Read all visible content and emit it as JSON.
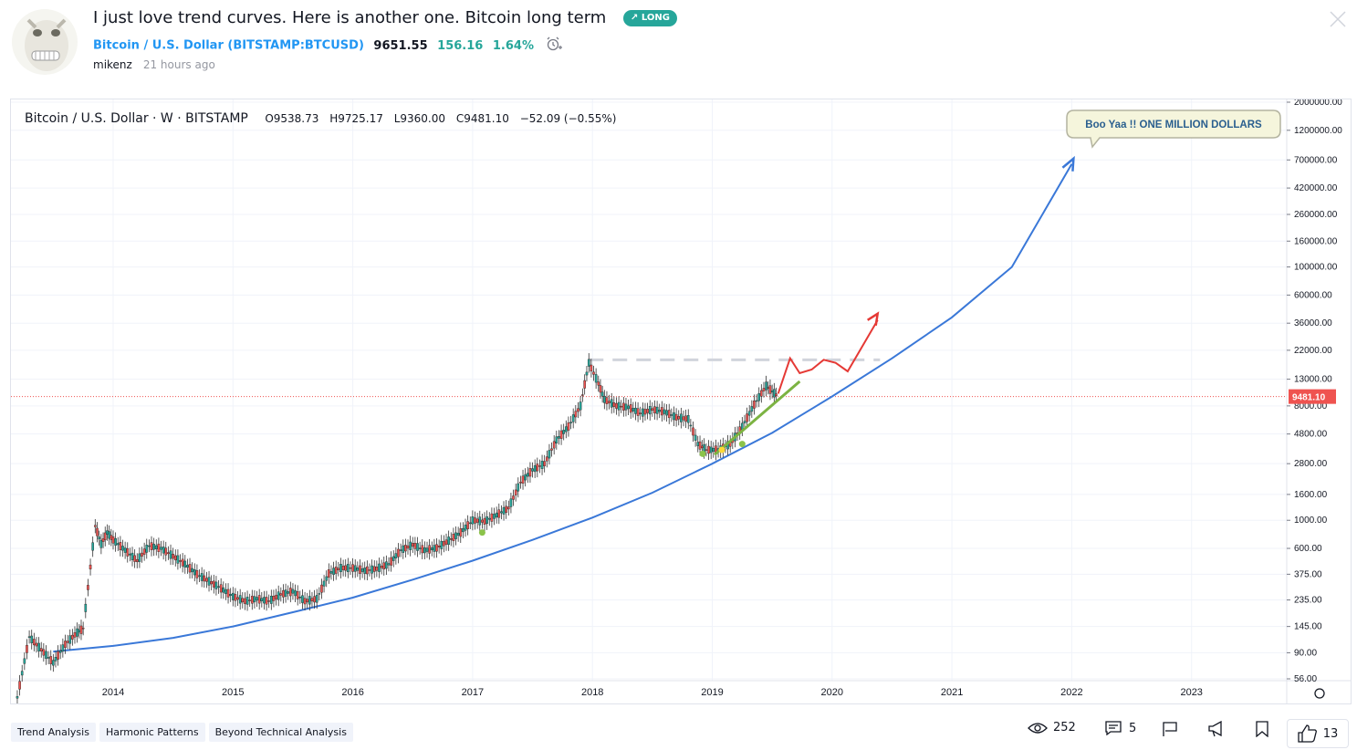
{
  "post": {
    "title": "I just love trend curves. Here is another one. Bitcoin long term",
    "badge": "↗ LONG",
    "author": "mikenz",
    "time_ago": "21 hours ago",
    "colors": {
      "accent": "#2196f3",
      "long": "#26a69a"
    }
  },
  "symbol": {
    "name": "Bitcoin / U.S. Dollar",
    "ticker_open": " (",
    "ticker": "BITSTAMP:BTCUSD",
    "ticker_close": ")",
    "price": "9651.55",
    "change": "156.16",
    "change_pct": "1.64%"
  },
  "legend": {
    "title": "Bitcoin / U.S. Dollar · W · BITSTAMP",
    "o": "O9538.73",
    "h": "H9725.17",
    "l": "L9360.00",
    "c": "C9481.10",
    "chg": "−52.09 (−0.55%)"
  },
  "chart_data": {
    "type": "line",
    "y_scale": "log",
    "x_ticks": [
      "2014",
      "2015",
      "2016",
      "2017",
      "2018",
      "2019",
      "2020",
      "2021",
      "2022",
      "2023"
    ],
    "y_ticks": [
      "2000000.00",
      "1200000.00",
      "700000.00",
      "420000.00",
      "260000.00",
      "160000.00",
      "100000.00",
      "60000.00",
      "36000.00",
      "22000.00",
      "13000.00",
      "8000.00",
      "4800.00",
      "2800.00",
      "1600.00",
      "1000.00",
      "600.00",
      "375.00",
      "235.00",
      "145.00",
      "90.00",
      "56.00"
    ],
    "y_tick_values": [
      2000000,
      1200000,
      700000,
      420000,
      260000,
      160000,
      100000,
      60000,
      36000,
      22000,
      13000,
      8000,
      4800,
      2800,
      1600,
      1000,
      600,
      375,
      235,
      145,
      90,
      56
    ],
    "last_price_label": "9481.10",
    "last_price": 9481.1,
    "price_series": {
      "x": [
        2013.2,
        2013.3,
        2013.4,
        2013.5,
        2013.6,
        2013.7,
        2013.75,
        2013.85,
        2013.9,
        2013.95,
        2014.0,
        2014.1,
        2014.2,
        2014.3,
        2014.4,
        2014.5,
        2014.6,
        2014.7,
        2014.8,
        2014.9,
        2015.0,
        2015.1,
        2015.2,
        2015.3,
        2015.4,
        2015.5,
        2015.6,
        2015.7,
        2015.8,
        2015.9,
        2016.0,
        2016.1,
        2016.2,
        2016.3,
        2016.4,
        2016.5,
        2016.6,
        2016.7,
        2016.8,
        2016.9,
        2017.0,
        2017.1,
        2017.2,
        2017.3,
        2017.4,
        2017.5,
        2017.6,
        2017.7,
        2017.8,
        2017.9,
        2017.97,
        2018.05,
        2018.1,
        2018.2,
        2018.3,
        2018.4,
        2018.5,
        2018.6,
        2018.7,
        2018.8,
        2018.88,
        2018.95,
        2019.05,
        2019.15,
        2019.25,
        2019.35,
        2019.45,
        2019.5,
        2019.55
      ],
      "y": [
        40,
        120,
        95,
        75,
        105,
        130,
        140,
        900,
        650,
        800,
        700,
        580,
        480,
        630,
        600,
        520,
        450,
        375,
        330,
        290,
        250,
        230,
        240,
        230,
        260,
        275,
        230,
        240,
        380,
        420,
        420,
        400,
        415,
        450,
        580,
        640,
        580,
        605,
        690,
        800,
        1000,
        980,
        1100,
        1250,
        2000,
        2500,
        2800,
        4300,
        5500,
        8000,
        17500,
        12000,
        9000,
        8000,
        7800,
        7000,
        7500,
        7200,
        6500,
        6300,
        4000,
        3600,
        3600,
        4000,
        5500,
        8200,
        11500,
        10400,
        9481
      ]
    },
    "trend_curve": {
      "x": [
        2013.5,
        2014.0,
        2014.5,
        2015.0,
        2015.5,
        2016.0,
        2016.5,
        2017.0,
        2017.5,
        2018.0,
        2018.5,
        2019.0,
        2019.5,
        2020.0,
        2020.5,
        2021.0,
        2021.5,
        2022.0
      ],
      "y": [
        92,
        102,
        118,
        145,
        188,
        245,
        340,
        480,
        700,
        1050,
        1650,
        2800,
        4900,
        9500,
        19000,
        40000,
        100000,
        650000
      ]
    },
    "green_trendline": {
      "x": [
        2019.02,
        2019.73
      ],
      "y": [
        3300,
        12500
      ]
    },
    "resistance": {
      "x": [
        2017.97,
        2020.4
      ],
      "y": [
        18500,
        18500
      ]
    },
    "projection": {
      "x": [
        2019.55,
        2019.65,
        2019.73,
        2019.83,
        2019.93,
        2020.03,
        2020.13,
        2020.38
      ],
      "y": [
        10000,
        19000,
        14500,
        15500,
        18500,
        17500,
        15000,
        38000
      ]
    },
    "projection_arrow": {
      "x": [
        2020.05,
        2020.38
      ],
      "y": [
        14000,
        40000
      ]
    },
    "green_dots": {
      "x": [
        2017.08,
        2018.92,
        2019.25
      ],
      "y": [
        800,
        3350,
        4000
      ]
    },
    "yellow_dots": {
      "x": [
        2019.08
      ],
      "y": [
        3600
      ]
    },
    "callout": {
      "text": "Boo Yaa !! ONE MILLION DOLLARS",
      "x": 2022.05,
      "y": 720000
    }
  },
  "tags": [
    "Trend Analysis",
    "Harmonic Patterns",
    "Beyond Technical Analysis"
  ],
  "stats": {
    "views": "252",
    "comments": "5",
    "likes": "13"
  }
}
